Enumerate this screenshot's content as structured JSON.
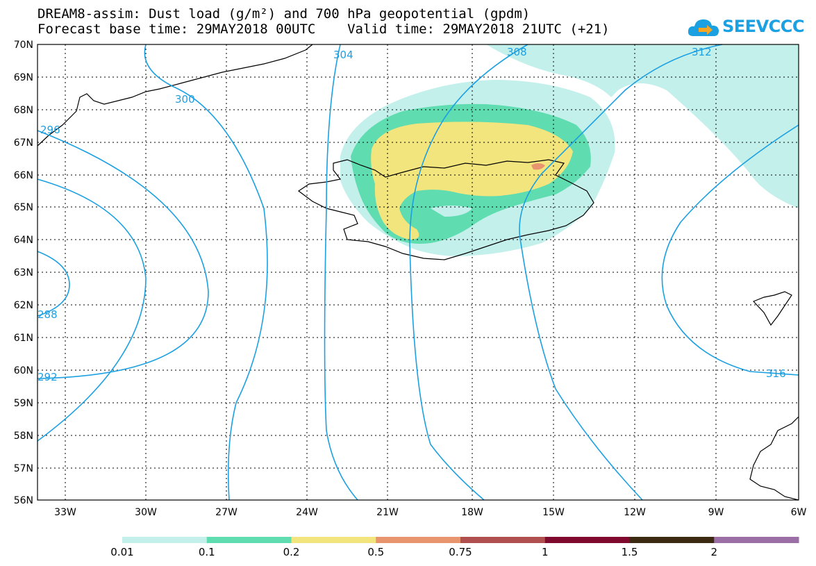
{
  "title": {
    "line1": "DREAM8-assim: Dust load (g/m²) and 700 hPa geopotential (gpdm)",
    "line2": "Forecast base time: 29MAY2018 00UTC    Valid time: 29MAY2018 21UTC (+21)"
  },
  "logo": {
    "text": "SEEVCCC",
    "icon": "cloud-icon"
  },
  "axes": {
    "lat_labels": [
      "70N",
      "69N",
      "68N",
      "67N",
      "66N",
      "65N",
      "64N",
      "63N",
      "62N",
      "61N",
      "60N",
      "59N",
      "58N",
      "57N",
      "56N"
    ],
    "lon_labels": [
      "33W",
      "30W",
      "27W",
      "24W",
      "21W",
      "18W",
      "15W",
      "12W",
      "9W",
      "6W"
    ]
  },
  "contour_labels": [
    "296",
    "300",
    "304",
    "308",
    "312",
    "288",
    "292",
    "316"
  ],
  "colorbar": {
    "labels": [
      "0.01",
      "0.1",
      "0.2",
      "0.5",
      "0.75",
      "1",
      "1.5",
      "2"
    ],
    "colors": [
      "#c4f0ec",
      "#5fdcb0",
      "#f3e57d",
      "#e8956f",
      "#b0504e",
      "#7f0a2e",
      "#3d2a12",
      "#9b6fa6"
    ]
  },
  "colors": {
    "contour": "#1ba0e2",
    "coast": "#000000",
    "grid": "#000000"
  }
}
